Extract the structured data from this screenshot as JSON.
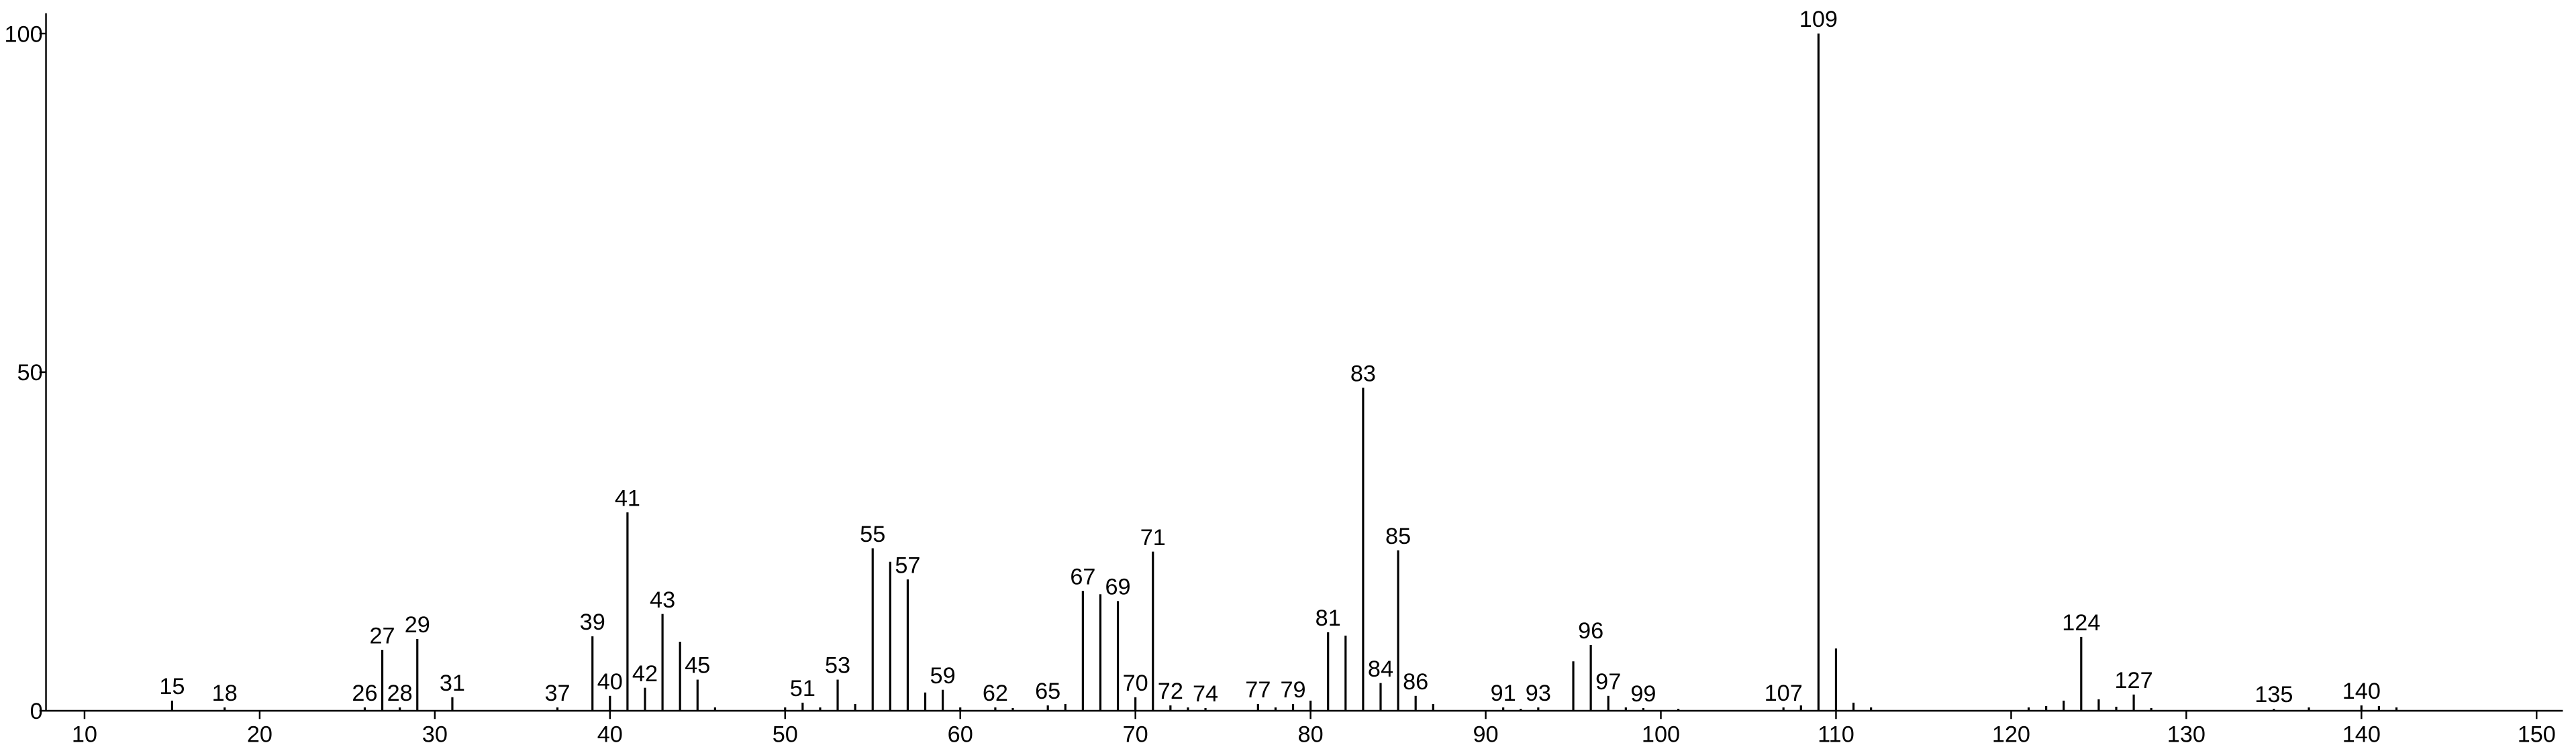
{
  "chart_data": {
    "type": "stem",
    "color": "#000000",
    "x": [
      15,
      18,
      26,
      27,
      28,
      29,
      31,
      37,
      39,
      40,
      41,
      42,
      43,
      44,
      45,
      46,
      50,
      51,
      52,
      53,
      54,
      55,
      56,
      57,
      58,
      59,
      60,
      62,
      63,
      65,
      66,
      67,
      68,
      69,
      70,
      71,
      72,
      73,
      74,
      77,
      78,
      79,
      80,
      81,
      82,
      83,
      84,
      85,
      86,
      87,
      91,
      92,
      93,
      95,
      96,
      97,
      98,
      99,
      101,
      107,
      108,
      109,
      110,
      111,
      112,
      121,
      122,
      123,
      124,
      125,
      126,
      127,
      128,
      135,
      137,
      140,
      141,
      142
    ],
    "values": [
      1.5,
      0.5,
      0.5,
      9,
      0.5,
      10.6,
      2,
      0.5,
      11,
      2.2,
      29.3,
      3.4,
      14.3,
      10.2,
      4.6,
      0.5,
      0.5,
      1.2,
      0.5,
      4.6,
      1,
      24,
      22,
      19.4,
      2.7,
      3.1,
      0.5,
      0.5,
      0.4,
      0.8,
      1,
      17.7,
      17.2,
      16.2,
      2,
      23.5,
      0.8,
      0.5,
      0.4,
      1,
      0.5,
      1,
      1.5,
      11.6,
      11.1,
      47.7,
      4.1,
      23.7,
      2.2,
      1,
      0.5,
      0.3,
      0.5,
      7.3,
      9.7,
      2.2,
      0.5,
      0.4,
      0.3,
      0.5,
      0.8,
      100,
      9.2,
      1.2,
      0.5,
      0.5,
      0.7,
      1.5,
      10.9,
      1.7,
      0.6,
      2.4,
      0.4,
      0.3,
      0.5,
      0.8,
      0.7,
      0.5
    ],
    "peak_labels": [
      15,
      18,
      26,
      27,
      28,
      29,
      31,
      37,
      39,
      40,
      41,
      42,
      43,
      null,
      45,
      null,
      null,
      51,
      null,
      53,
      null,
      55,
      null,
      57,
      null,
      59,
      null,
      62,
      null,
      65,
      null,
      67,
      null,
      69,
      70,
      71,
      72,
      null,
      74,
      77,
      null,
      79,
      null,
      81,
      null,
      83,
      84,
      85,
      86,
      null,
      91,
      null,
      93,
      null,
      96,
      97,
      null,
      99,
      null,
      107,
      null,
      109,
      null,
      null,
      null,
      null,
      null,
      null,
      124,
      null,
      null,
      127,
      null,
      135,
      null,
      140,
      null,
      null
    ],
    "xlim": [
      7.8,
      151.5
    ],
    "ylim": [
      0,
      103
    ],
    "xticks": [
      10,
      20,
      30,
      40,
      50,
      60,
      70,
      80,
      90,
      100,
      110,
      120,
      130,
      140,
      150
    ],
    "yticks": [
      0,
      50,
      100
    ]
  }
}
